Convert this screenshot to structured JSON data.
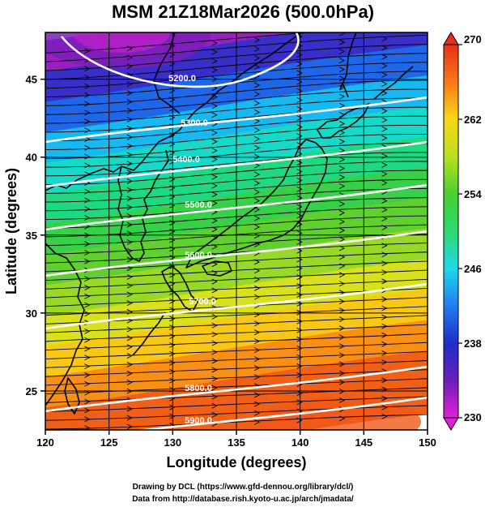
{
  "title": "MSM 21Z18Mar2026 (500.0hPa)",
  "x_axis": {
    "label": "Longitude (degrees)",
    "ticks": [
      "120",
      "125",
      "130",
      "135",
      "140",
      "145",
      "150"
    ]
  },
  "y_axis": {
    "label": "Latitude  (degrees)",
    "ticks": [
      "25",
      "30",
      "35",
      "40",
      "45"
    ]
  },
  "colorbar": {
    "ticks": [
      "230",
      "238",
      "246",
      "254",
      "262",
      "270"
    ],
    "min": 230,
    "max": 270
  },
  "contours": {
    "values": [
      5200,
      5300,
      5400,
      5500,
      5600,
      5700,
      5800,
      5900
    ],
    "labels": [
      "5200.0",
      "5300.0",
      "5400.0",
      "5500.0",
      "5600.0",
      "5700.0",
      "5800.0",
      "5900.0"
    ]
  },
  "map": {
    "lon_range": [
      120,
      150
    ],
    "lat_range": [
      22.5,
      48
    ],
    "grid": true
  },
  "credits": {
    "line1": "Drawing by DCL (https://www.gfd-dennou.org/library/dcl/)",
    "line2": "Data from http://database.rish.kyoto-u.ac.jp/arch/jmadata/"
  }
}
